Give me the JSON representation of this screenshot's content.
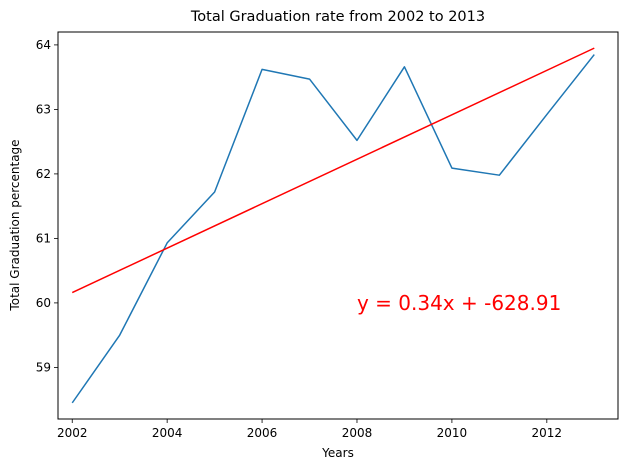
{
  "chart_data": {
    "type": "line",
    "title": "Total Graduation rate from 2002 to 2013",
    "xlabel": "Years",
    "ylabel": "Total Graduation percentage",
    "xlim": [
      2001.7,
      2013.5
    ],
    "ylim": [
      58.2,
      64.2
    ],
    "x_ticks": [
      2002,
      2004,
      2006,
      2008,
      2010,
      2012
    ],
    "y_ticks": [
      59,
      60,
      61,
      62,
      63,
      64
    ],
    "grid": false,
    "series": [
      {
        "color": "#1f77b4",
        "x": [
          2002,
          2003,
          2004,
          2005,
          2006,
          2007,
          2008,
          2009,
          2010,
          2011,
          2012,
          2013
        ],
        "values": [
          58.45,
          59.5,
          60.93,
          61.72,
          63.62,
          63.47,
          62.52,
          63.66,
          62.09,
          61.98,
          62.92,
          63.85
        ]
      },
      {
        "color": "#ff0000",
        "x": [
          2002,
          2013
        ],
        "values": [
          60.16,
          63.95
        ]
      }
    ],
    "annotation": {
      "text": "y = 0.34x + -628.91",
      "x": 2008,
      "y": 60,
      "color": "#ff0000"
    }
  }
}
